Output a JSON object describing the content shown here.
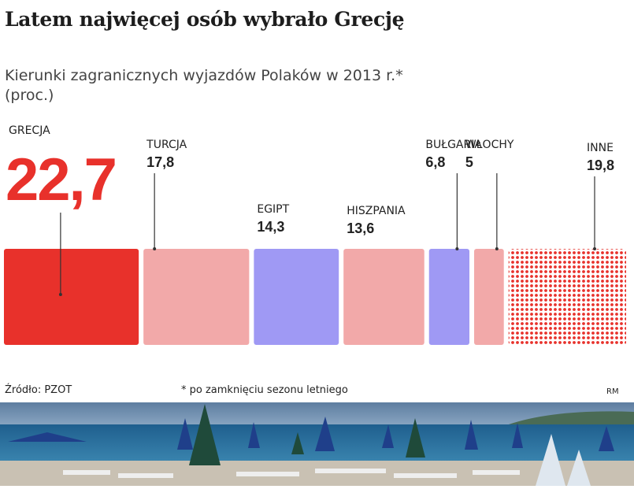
{
  "header": {
    "title": "Latem najwięcej osób wybrało Grecję",
    "subtitle": "Kierunki zagranicznych wyjazdów Polaków w 2013 r.*",
    "subtitle_unit": "(proc.)"
  },
  "chart_data": {
    "type": "bar",
    "title": "Latem najwięcej osób wybrało Grecję",
    "subtitle": "Kierunki zagranicznych wyjazdów Polaków w 2013 r.*",
    "unit": "(proc.)",
    "categories": [
      "GRECJA",
      "TURCJA",
      "EGIPT",
      "HISZPANIA",
      "BUŁGARIA",
      "WŁOCHY",
      "INNE"
    ],
    "values": [
      22.7,
      17.8,
      14.3,
      13.6,
      6.8,
      5,
      19.8
    ],
    "value_labels": [
      "22,7",
      "17,8",
      "14,3",
      "13,6",
      "6,8",
      "5",
      "19,8"
    ],
    "colors": [
      "#e8312b",
      "#f2a9a9",
      "#9f99f4",
      "#f2a9a9",
      "#9f99f4",
      "#f2a9a9",
      "#f2a9a9"
    ],
    "pattern": [
      false,
      false,
      false,
      false,
      false,
      false,
      true
    ],
    "accent_dot_color": "#e8312b",
    "layout": "proportional-width blocks"
  },
  "footer": {
    "source": "Źródło: PZOT",
    "note": "* po zamknięciu sezonu letniego",
    "author": "RM"
  },
  "photo": {
    "subject": "beach with parasols and sunbeds",
    "sky_color": "#6f8fb0",
    "sea_color": "#2f6f9e",
    "sand_color": "#c8c0b2"
  }
}
